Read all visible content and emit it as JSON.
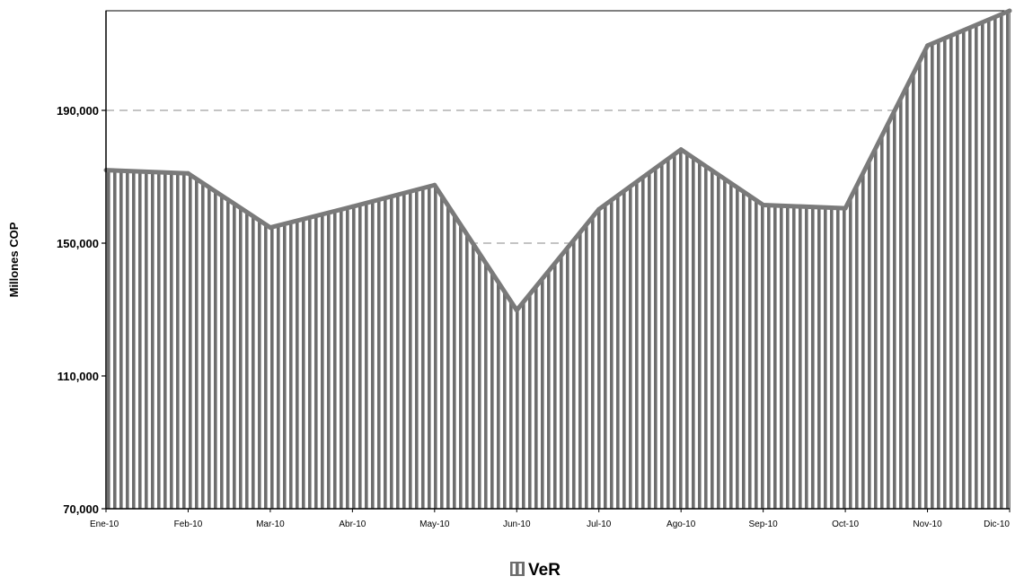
{
  "chart_data": {
    "type": "area",
    "title": "",
    "xlabel": "",
    "ylabel": "Millones COP",
    "ylim": [
      70000,
      220000
    ],
    "yticks": [
      70000,
      110000,
      150000,
      190000
    ],
    "ytick_labels": [
      "70,000",
      "110,000",
      "150,000",
      "190,000"
    ],
    "categories": [
      "Ene-10",
      "Feb-10",
      "Mar-10",
      "Abr-10",
      "May-10",
      "Jun-10",
      "Jul-10",
      "Ago-10",
      "Sep-10",
      "Oct-10",
      "Nov-10",
      "Dic-10"
    ],
    "grid": "horizontal dashed",
    "legend_position": "bottom-center",
    "series": [
      {
        "name": "VeR",
        "values": [
          172000,
          171000,
          154700,
          161000,
          167500,
          129800,
          160200,
          178200,
          161500,
          160500,
          209500,
          220000
        ]
      }
    ],
    "colors": {
      "line": "#7a7a7a",
      "hatch": "#6e6e6e",
      "fill": "#ffffff",
      "grid": "#a0a0a0",
      "axis": "#000000"
    }
  }
}
